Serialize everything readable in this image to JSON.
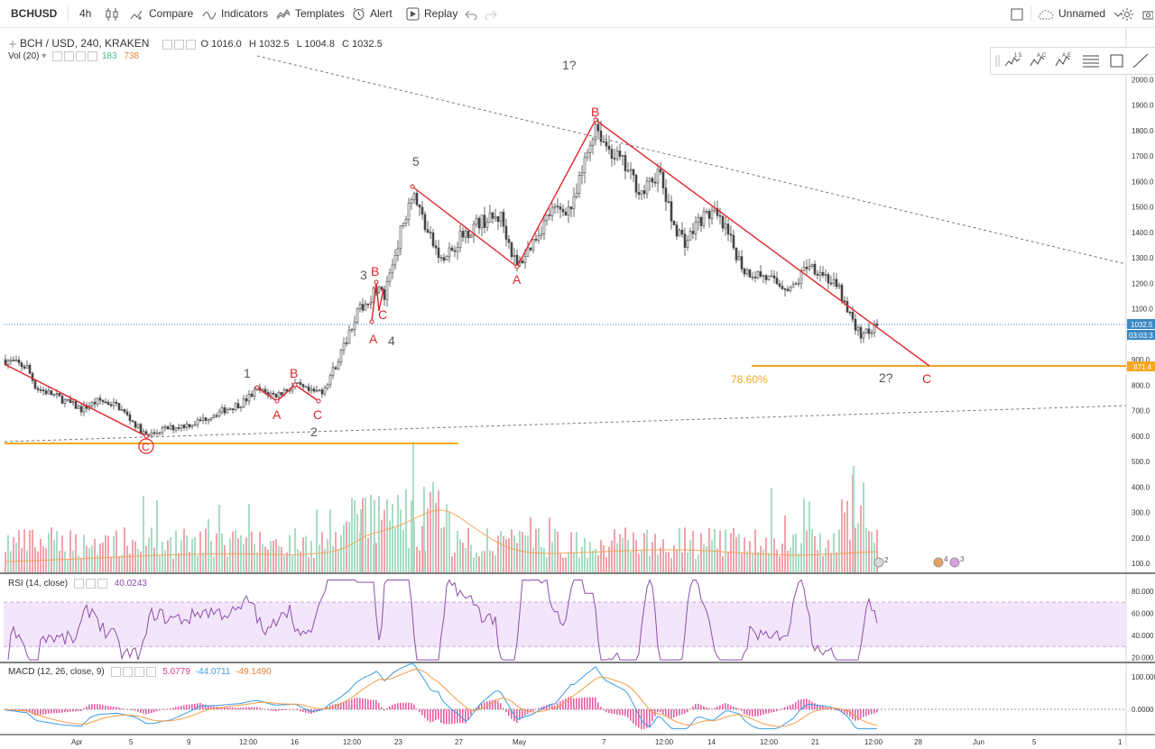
{
  "toolbar": {
    "symbol": "BCHUSD",
    "interval": "4h",
    "compare": "Compare",
    "indicators": "Indicators",
    "templates": "Templates",
    "alert": "Alert",
    "replay": "Replay",
    "layout_name": "Unnamed"
  },
  "legend": {
    "main": "BCH / USD, 240, KRAKEN",
    "open": "O 1016.0",
    "high": "H 1032.5",
    "low": "L 1004.8",
    "close": "C 1032.5",
    "volume": "Vol (20)",
    "vol_up": "183",
    "vol_down": "738",
    "rsi": "RSI (14, close)",
    "rsi_value": "40.0243",
    "macd": "MACD (12, 26, close, 9)",
    "macd_hist": "5.0779",
    "macd_line": "-44.0711",
    "macd_signal": "-49.1490"
  },
  "price_scale": {
    "ticks": [
      "2000.0",
      "1900.0",
      "1800.0",
      "1700.0",
      "1600.0",
      "1500.0",
      "1400.0",
      "1300.0",
      "1200.0",
      "1100.0",
      "1000.0",
      "900.0",
      "800.0",
      "700.0",
      "600.0",
      "500.0",
      "400.0",
      "300.0",
      "200.0",
      "100.0"
    ],
    "last_price": "1032.5",
    "countdown": "03:03:3",
    "fib_price": "871.4"
  },
  "rsi_scale": {
    "ticks": [
      "80.000",
      "60.000",
      "40.000",
      "20.000"
    ]
  },
  "macd_scale": {
    "ticks": [
      "100.000",
      "0.0000"
    ]
  },
  "time_axis": {
    "ticks": [
      "Apr",
      "5",
      "9",
      "12:00",
      "16",
      "12:00",
      "23",
      "27",
      "May",
      "7",
      "12:00",
      "14",
      "12:00",
      "21",
      "12:00",
      "28",
      "Jun",
      "5",
      "1"
    ]
  },
  "annotations": {
    "wave1": "1",
    "wave2": "2",
    "wave3": "3",
    "wave4": "4",
    "wave5": "5",
    "wave1_q": "1?",
    "wave2_q": "2?",
    "c_circled": "C",
    "a1": "A",
    "b1": "B",
    "c1": "C",
    "a2": "A",
    "b2": "B",
    "c2": "C",
    "a3": "A",
    "b3": "B",
    "c3": "C",
    "fib": "78.60%"
  },
  "markers": {
    "m1": "2",
    "m2": "4",
    "m3": "3"
  },
  "colors": {
    "up": "#53b987",
    "down": "#eb4d5c",
    "wave_line": "#e0262b",
    "fib": "#f5a623",
    "rsi": "#8e4fa8",
    "rsi_band": "#f3e6fb",
    "macd_line": "#3b9be0",
    "signal_line": "#f39c48",
    "macd_hist": "#e0348a"
  }
}
